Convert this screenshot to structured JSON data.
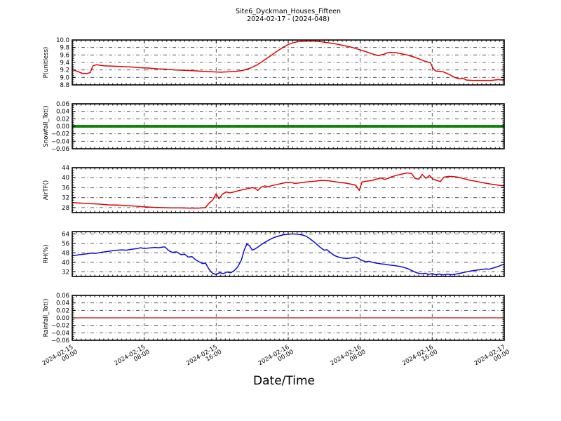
{
  "figure": {
    "title": "Site6_Dyckman_Houses_Fifteen",
    "subtitle": "2024-02-17 - (2024-048)",
    "xlabel": "Date/Time",
    "background": "#ffffff"
  },
  "x_axis": {
    "lim_hours": [
      0,
      48
    ],
    "major_ticks_hours": [
      0,
      8,
      16,
      24,
      32,
      40,
      48
    ],
    "tick_labels": [
      [
        "2024-02-15",
        "00:00"
      ],
      [
        "2024-02-15",
        "08:00"
      ],
      [
        "2024-02-15",
        "16:00"
      ],
      [
        "2024-02-16",
        "00:00"
      ],
      [
        "2024-02-16",
        "08:00"
      ],
      [
        "2024-02-16",
        "16:00"
      ],
      [
        "2024-02-17",
        "00:00"
      ]
    ],
    "grid_color": "#3c3c3c"
  },
  "chart_data": [
    {
      "id": "p-unitless",
      "type": "line",
      "ylabel": "P(unitless)",
      "color": "#e60000",
      "linewidth": 1.5,
      "ylim": [
        8.8,
        10.0
      ],
      "yticks": [
        8.8,
        9.0,
        9.2,
        9.4,
        9.6,
        9.8,
        10.0
      ],
      "ytick_labels": [
        "8.8",
        "9.0",
        "9.2",
        "9.4",
        "9.6",
        "9.8",
        "10.0"
      ],
      "minor_step": 0.05,
      "points": [
        [
          0,
          9.21
        ],
        [
          0.6,
          9.16
        ],
        [
          1.1,
          9.11
        ],
        [
          1.6,
          9.1
        ],
        [
          2,
          9.13
        ],
        [
          2.3,
          9.31
        ],
        [
          2.7,
          9.34
        ],
        [
          3.5,
          9.31
        ],
        [
          4.5,
          9.3
        ],
        [
          5.5,
          9.29
        ],
        [
          6.5,
          9.28
        ],
        [
          7.5,
          9.26
        ],
        [
          8.5,
          9.25
        ],
        [
          9.5,
          9.23
        ],
        [
          10.5,
          9.22
        ],
        [
          11.5,
          9.2
        ],
        [
          12.5,
          9.19
        ],
        [
          13.5,
          9.18
        ],
        [
          14.5,
          9.16
        ],
        [
          15.5,
          9.15
        ],
        [
          16.5,
          9.14
        ],
        [
          17.5,
          9.15
        ],
        [
          18.2,
          9.16
        ],
        [
          19,
          9.19
        ],
        [
          19.8,
          9.25
        ],
        [
          20.5,
          9.33
        ],
        [
          21.2,
          9.44
        ],
        [
          22,
          9.57
        ],
        [
          22.7,
          9.69
        ],
        [
          23.4,
          9.8
        ],
        [
          24,
          9.88
        ],
        [
          24.6,
          9.93
        ],
        [
          25.2,
          9.96
        ],
        [
          26,
          9.97
        ],
        [
          27,
          9.97
        ],
        [
          27.8,
          9.95
        ],
        [
          28.6,
          9.92
        ],
        [
          29.4,
          9.89
        ],
        [
          30.2,
          9.85
        ],
        [
          31,
          9.81
        ],
        [
          31.8,
          9.75
        ],
        [
          32.6,
          9.69
        ],
        [
          33.3,
          9.63
        ],
        [
          34,
          9.58
        ],
        [
          34.6,
          9.62
        ],
        [
          35.2,
          9.67
        ],
        [
          36,
          9.66
        ],
        [
          36.6,
          9.63
        ],
        [
          37.2,
          9.6
        ],
        [
          37.9,
          9.55
        ],
        [
          38.6,
          9.49
        ],
        [
          39.2,
          9.43
        ],
        [
          39.8,
          9.39
        ],
        [
          40.1,
          9.24
        ],
        [
          40.4,
          9.17
        ],
        [
          41.2,
          9.15
        ],
        [
          41.9,
          9.08
        ],
        [
          42.5,
          9.0
        ],
        [
          43,
          8.96
        ],
        [
          43.4,
          8.98
        ],
        [
          43.8,
          8.93
        ],
        [
          44.5,
          8.92
        ],
        [
          45.5,
          8.92
        ],
        [
          46.5,
          8.92
        ],
        [
          47.3,
          8.94
        ],
        [
          48,
          8.93
        ]
      ]
    },
    {
      "id": "snowfall-tot",
      "type": "line",
      "ylabel": "Snowfall_Tot()",
      "color": "#0c8c0c",
      "linewidth": 4,
      "ylim": [
        -0.06,
        0.06
      ],
      "yticks": [
        -0.06,
        -0.04,
        -0.02,
        0,
        0.02,
        0.04,
        0.06
      ],
      "ytick_labels": [
        "−0.06",
        "−0.04",
        "−0.02",
        "0.00",
        "0.02",
        "0.04",
        "0.06"
      ],
      "minor_step": 0.005,
      "points": [
        [
          0,
          0
        ],
        [
          48,
          0
        ]
      ]
    },
    {
      "id": "airtf",
      "type": "line",
      "ylabel": "AirTF()",
      "color": "#e60000",
      "linewidth": 1.5,
      "ylim": [
        26,
        44
      ],
      "yticks": [
        28,
        32,
        36,
        40,
        44
      ],
      "ytick_labels": [
        "28",
        "32",
        "36",
        "40",
        "44"
      ],
      "minor_step": 1,
      "points": [
        [
          0,
          30
        ],
        [
          1,
          29.8
        ],
        [
          2,
          29.6
        ],
        [
          3,
          29.4
        ],
        [
          4,
          29.1
        ],
        [
          5,
          29
        ],
        [
          6,
          28.8
        ],
        [
          7,
          28.6
        ],
        [
          8,
          28.3
        ],
        [
          9,
          28.1
        ],
        [
          10,
          28
        ],
        [
          11,
          27.9
        ],
        [
          12,
          27.9
        ],
        [
          13,
          27.8
        ],
        [
          14,
          27.8
        ],
        [
          14.8,
          28
        ],
        [
          15.2,
          29.8
        ],
        [
          15.6,
          31
        ],
        [
          16,
          33.6
        ],
        [
          16.3,
          31.6
        ],
        [
          16.7,
          33.4
        ],
        [
          17.1,
          34.3
        ],
        [
          17.5,
          33.9
        ],
        [
          18,
          34.3
        ],
        [
          18.5,
          34.8
        ],
        [
          19,
          35.2
        ],
        [
          19.5,
          35.6
        ],
        [
          20,
          36
        ],
        [
          20.3,
          35.8
        ],
        [
          20.6,
          34.9
        ],
        [
          21,
          36.2
        ],
        [
          21.4,
          36.7
        ],
        [
          21.8,
          36.4
        ],
        [
          22.3,
          36.9
        ],
        [
          22.8,
          37.3
        ],
        [
          23.3,
          37.7
        ],
        [
          23.8,
          38.1
        ],
        [
          24.3,
          38.2
        ],
        [
          24.7,
          37.7
        ],
        [
          25.2,
          37.9
        ],
        [
          25.8,
          38.2
        ],
        [
          26.4,
          38.4
        ],
        [
          27,
          38.6
        ],
        [
          27.6,
          38.9
        ],
        [
          28.4,
          38.8
        ],
        [
          29,
          38.5
        ],
        [
          29.7,
          38.1
        ],
        [
          30.4,
          37.8
        ],
        [
          31,
          37.4
        ],
        [
          31.5,
          37
        ],
        [
          31.9,
          34.9
        ],
        [
          32.2,
          38.3
        ],
        [
          32.7,
          38.6
        ],
        [
          33.3,
          38.9
        ],
        [
          33.9,
          39.5
        ],
        [
          34.3,
          39.9
        ],
        [
          34.7,
          39.3
        ],
        [
          35.1,
          39.7
        ],
        [
          35.5,
          40.4
        ],
        [
          36.1,
          41
        ],
        [
          36.7,
          41.5
        ],
        [
          37.2,
          41.9
        ],
        [
          37.7,
          41.7
        ],
        [
          38.1,
          39.7
        ],
        [
          38.5,
          39.4
        ],
        [
          38.9,
          41.3
        ],
        [
          39.3,
          39.7
        ],
        [
          39.7,
          40.9
        ],
        [
          40.1,
          39.4
        ],
        [
          40.5,
          38.9
        ],
        [
          40.9,
          38.4
        ],
        [
          41.3,
          40.2
        ],
        [
          41.8,
          40.5
        ],
        [
          42.4,
          40.4
        ],
        [
          42.9,
          40.2
        ],
        [
          43.4,
          39.7
        ],
        [
          44,
          39.1
        ],
        [
          44.6,
          38.7
        ],
        [
          45.2,
          38.3
        ],
        [
          45.8,
          37.9
        ],
        [
          46.4,
          37.5
        ],
        [
          47,
          37.2
        ],
        [
          47.5,
          36.9
        ],
        [
          48,
          36.7
        ]
      ]
    },
    {
      "id": "rh",
      "type": "line",
      "ylabel": "RH(%)",
      "color": "#0b0bdd",
      "linewidth": 1.5,
      "ylim": [
        28,
        66
      ],
      "yticks": [
        32,
        40,
        48,
        56,
        64
      ],
      "ytick_labels": [
        "32",
        "40",
        "48",
        "56",
        "64"
      ],
      "minor_step": 2,
      "points": [
        [
          0,
          45.5
        ],
        [
          0.8,
          46.4
        ],
        [
          1.6,
          47.2
        ],
        [
          2.2,
          47.8
        ],
        [
          2.6,
          47.5
        ],
        [
          3.2,
          48.4
        ],
        [
          4,
          49.2
        ],
        [
          4.8,
          50.1
        ],
        [
          5.5,
          50.5
        ],
        [
          6,
          50.2
        ],
        [
          6.6,
          51
        ],
        [
          7.2,
          51.6
        ],
        [
          7.6,
          52.3
        ],
        [
          8,
          51.7
        ],
        [
          8.6,
          52.1
        ],
        [
          9.2,
          52.6
        ],
        [
          9.6,
          52.3
        ],
        [
          10,
          52.8
        ],
        [
          10.3,
          53
        ],
        [
          10.7,
          50
        ],
        [
          11.1,
          48.4
        ],
        [
          11.6,
          48.8
        ],
        [
          12.1,
          46.4
        ],
        [
          12.5,
          46.8
        ],
        [
          12.9,
          44.4
        ],
        [
          13.3,
          44.8
        ],
        [
          13.7,
          42.2
        ],
        [
          14.1,
          40.4
        ],
        [
          14.5,
          38.8
        ],
        [
          14.8,
          39.5
        ],
        [
          15.2,
          34
        ],
        [
          15.6,
          30.6
        ],
        [
          16,
          29.7
        ],
        [
          16.4,
          31.2
        ],
        [
          16.8,
          30.4
        ],
        [
          17.2,
          31.8
        ],
        [
          17.6,
          31
        ],
        [
          18,
          33
        ],
        [
          18.4,
          36.2
        ],
        [
          18.8,
          42
        ],
        [
          19.1,
          50
        ],
        [
          19.4,
          55.5
        ],
        [
          19.7,
          54
        ],
        [
          20,
          50.3
        ],
        [
          20.3,
          51.2
        ],
        [
          20.7,
          53.2
        ],
        [
          21.1,
          55.5
        ],
        [
          21.5,
          57.3
        ],
        [
          22,
          59.4
        ],
        [
          22.5,
          61.2
        ],
        [
          23,
          62.4
        ],
        [
          23.5,
          63.3
        ],
        [
          24,
          63.7
        ],
        [
          24.5,
          64
        ],
        [
          25,
          63.8
        ],
        [
          25.5,
          63.2
        ],
        [
          26,
          62
        ],
        [
          26.4,
          60
        ],
        [
          26.8,
          57.6
        ],
        [
          27.2,
          55
        ],
        [
          27.6,
          52.4
        ],
        [
          28,
          50.2
        ],
        [
          28.3,
          50.7
        ],
        [
          28.7,
          48.2
        ],
        [
          29.1,
          45.8
        ],
        [
          29.5,
          44.6
        ],
        [
          30,
          43.6
        ],
        [
          30.5,
          43.2
        ],
        [
          31,
          43.7
        ],
        [
          31.4,
          44.4
        ],
        [
          31.8,
          43.4
        ],
        [
          32.2,
          41.6
        ],
        [
          32.6,
          40.4
        ],
        [
          33,
          40.8
        ],
        [
          33.4,
          39.8
        ],
        [
          33.8,
          39.3
        ],
        [
          34.3,
          38.7
        ],
        [
          34.8,
          38.2
        ],
        [
          35.3,
          37.7
        ],
        [
          35.8,
          37.2
        ],
        [
          36.3,
          36.6
        ],
        [
          36.8,
          35.8
        ],
        [
          37.3,
          34.6
        ],
        [
          37.8,
          32.8
        ],
        [
          38.3,
          31
        ],
        [
          38.8,
          30.2
        ],
        [
          39.2,
          30.7
        ],
        [
          39.6,
          29.8
        ],
        [
          40,
          30.3
        ],
        [
          40.4,
          29.5
        ],
        [
          40.8,
          30.1
        ],
        [
          41.2,
          29.3
        ],
        [
          41.7,
          29.9
        ],
        [
          42.2,
          29.4
        ],
        [
          42.7,
          30.1
        ],
        [
          43.3,
          31
        ],
        [
          44,
          32.2
        ],
        [
          44.7,
          33.1
        ],
        [
          45.3,
          33.7
        ],
        [
          46,
          34.4
        ],
        [
          46.3,
          34.1
        ],
        [
          46.8,
          35.2
        ],
        [
          47.3,
          36.4
        ],
        [
          47.7,
          37.6
        ],
        [
          48,
          38.4
        ]
      ]
    },
    {
      "id": "rainfall-tot",
      "type": "line",
      "ylabel": "Rainfall_Tot()",
      "color": "#e60000",
      "linewidth": 1.3,
      "ylim": [
        -0.06,
        0.06
      ],
      "yticks": [
        -0.06,
        -0.04,
        -0.02,
        0,
        0.02,
        0.04,
        0.06
      ],
      "ytick_labels": [
        "−0.06",
        "−0.04",
        "−0.02",
        "0.00",
        "0.02",
        "0.04",
        "0.06"
      ],
      "minor_step": 0.005,
      "points": [
        [
          0,
          0
        ],
        [
          48,
          0
        ]
      ]
    }
  ]
}
